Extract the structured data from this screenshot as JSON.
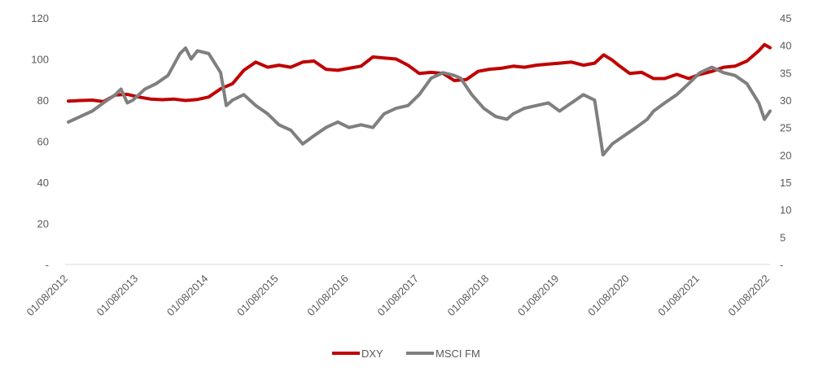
{
  "chart_data": {
    "type": "line",
    "x_categories": [
      "01/08/2012",
      "01/08/2013",
      "01/08/2014",
      "01/08/2015",
      "01/08/2016",
      "01/08/2017",
      "01/08/2018",
      "01/08/2019",
      "01/08/2020",
      "01/08/2021",
      "01/08/2022"
    ],
    "y_left": {
      "ticks": [
        "-",
        "20",
        "40",
        "60",
        "80",
        "100",
        "120"
      ],
      "ylim": [
        0,
        120
      ]
    },
    "y_right": {
      "ticks": [
        "-",
        "5",
        "10",
        "15",
        "20",
        "25",
        "30",
        "35",
        "40",
        "45"
      ],
      "ylim": [
        0,
        45
      ]
    },
    "legend_position": "bottom",
    "grid": false,
    "series": [
      {
        "name": "DXY",
        "axis": "left",
        "color": "#c00000",
        "points": [
          [
            2012.58,
            79.5
          ],
          [
            2012.75,
            79.8
          ],
          [
            2012.92,
            80.0
          ],
          [
            2013.08,
            79.3
          ],
          [
            2013.25,
            82.5
          ],
          [
            2013.42,
            82.8
          ],
          [
            2013.58,
            81.5
          ],
          [
            2013.75,
            80.5
          ],
          [
            2013.92,
            80.2
          ],
          [
            2014.08,
            80.5
          ],
          [
            2014.25,
            79.8
          ],
          [
            2014.42,
            80.3
          ],
          [
            2014.58,
            81.5
          ],
          [
            2014.75,
            85.5
          ],
          [
            2014.92,
            88.0
          ],
          [
            2015.08,
            94.5
          ],
          [
            2015.25,
            98.5
          ],
          [
            2015.42,
            96.0
          ],
          [
            2015.58,
            97.0
          ],
          [
            2015.75,
            96.0
          ],
          [
            2015.92,
            98.5
          ],
          [
            2016.08,
            99.0
          ],
          [
            2016.25,
            95.0
          ],
          [
            2016.42,
            94.5
          ],
          [
            2016.58,
            95.5
          ],
          [
            2016.75,
            96.5
          ],
          [
            2016.92,
            101.0
          ],
          [
            2017.08,
            100.5
          ],
          [
            2017.25,
            100.0
          ],
          [
            2017.42,
            97.0
          ],
          [
            2017.58,
            93.0
          ],
          [
            2017.75,
            93.5
          ],
          [
            2017.92,
            93.0
          ],
          [
            2018.08,
            89.5
          ],
          [
            2018.25,
            90.0
          ],
          [
            2018.42,
            94.0
          ],
          [
            2018.58,
            95.0
          ],
          [
            2018.75,
            95.5
          ],
          [
            2018.92,
            96.5
          ],
          [
            2019.08,
            96.0
          ],
          [
            2019.25,
            97.0
          ],
          [
            2019.42,
            97.5
          ],
          [
            2019.58,
            98.0
          ],
          [
            2019.75,
            98.5
          ],
          [
            2019.92,
            97.0
          ],
          [
            2020.08,
            98.0
          ],
          [
            2020.21,
            102.0
          ],
          [
            2020.33,
            99.5
          ],
          [
            2020.42,
            97.0
          ],
          [
            2020.58,
            93.0
          ],
          [
            2020.75,
            93.5
          ],
          [
            2020.92,
            90.5
          ],
          [
            2021.08,
            90.5
          ],
          [
            2021.25,
            92.5
          ],
          [
            2021.42,
            90.5
          ],
          [
            2021.58,
            92.5
          ],
          [
            2021.75,
            94.0
          ],
          [
            2021.92,
            96.0
          ],
          [
            2022.08,
            96.5
          ],
          [
            2022.25,
            99.0
          ],
          [
            2022.42,
            104.0
          ],
          [
            2022.5,
            107.0
          ],
          [
            2022.58,
            105.5
          ]
        ]
      },
      {
        "name": "MSCI FM",
        "axis": "right",
        "color": "#7f7f7f",
        "points": [
          [
            2012.58,
            26.0
          ],
          [
            2012.75,
            27.0
          ],
          [
            2012.92,
            28.0
          ],
          [
            2013.08,
            29.5
          ],
          [
            2013.25,
            31.0
          ],
          [
            2013.33,
            32.0
          ],
          [
            2013.42,
            29.5
          ],
          [
            2013.5,
            30.0
          ],
          [
            2013.67,
            32.0
          ],
          [
            2013.83,
            33.0
          ],
          [
            2014.0,
            34.5
          ],
          [
            2014.17,
            38.5
          ],
          [
            2014.25,
            39.5
          ],
          [
            2014.33,
            37.5
          ],
          [
            2014.42,
            39.0
          ],
          [
            2014.58,
            38.5
          ],
          [
            2014.75,
            35.0
          ],
          [
            2014.83,
            29.0
          ],
          [
            2014.92,
            30.0
          ],
          [
            2015.08,
            31.0
          ],
          [
            2015.25,
            29.0
          ],
          [
            2015.42,
            27.5
          ],
          [
            2015.58,
            25.5
          ],
          [
            2015.75,
            24.5
          ],
          [
            2015.92,
            22.0
          ],
          [
            2016.08,
            23.5
          ],
          [
            2016.25,
            25.0
          ],
          [
            2016.42,
            26.0
          ],
          [
            2016.58,
            25.0
          ],
          [
            2016.75,
            25.5
          ],
          [
            2016.92,
            25.0
          ],
          [
            2017.08,
            27.5
          ],
          [
            2017.25,
            28.5
          ],
          [
            2017.42,
            29.0
          ],
          [
            2017.58,
            31.0
          ],
          [
            2017.75,
            34.0
          ],
          [
            2017.92,
            35.0
          ],
          [
            2018.08,
            34.5
          ],
          [
            2018.17,
            34.0
          ],
          [
            2018.33,
            31.0
          ],
          [
            2018.5,
            28.5
          ],
          [
            2018.67,
            27.0
          ],
          [
            2018.83,
            26.5
          ],
          [
            2018.92,
            27.5
          ],
          [
            2019.08,
            28.5
          ],
          [
            2019.25,
            29.0
          ],
          [
            2019.42,
            29.5
          ],
          [
            2019.58,
            28.0
          ],
          [
            2019.75,
            29.5
          ],
          [
            2019.92,
            31.0
          ],
          [
            2020.08,
            30.0
          ],
          [
            2020.17,
            22.5
          ],
          [
            2020.2,
            20.0
          ],
          [
            2020.33,
            22.0
          ],
          [
            2020.5,
            23.5
          ],
          [
            2020.67,
            25.0
          ],
          [
            2020.83,
            26.5
          ],
          [
            2020.92,
            28.0
          ],
          [
            2021.08,
            29.5
          ],
          [
            2021.25,
            31.0
          ],
          [
            2021.42,
            33.0
          ],
          [
            2021.58,
            35.0
          ],
          [
            2021.75,
            36.0
          ],
          [
            2021.92,
            35.0
          ],
          [
            2022.08,
            34.5
          ],
          [
            2022.25,
            33.0
          ],
          [
            2022.42,
            29.5
          ],
          [
            2022.5,
            26.5
          ],
          [
            2022.58,
            28.0
          ]
        ]
      }
    ]
  },
  "legend": [
    {
      "label": "DXY",
      "color": "#c00000"
    },
    {
      "label": "MSCI FM",
      "color": "#7f7f7f"
    }
  ]
}
